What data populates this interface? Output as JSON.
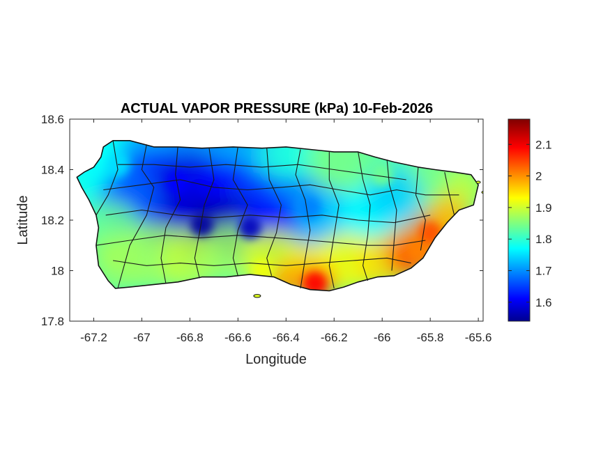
{
  "chart_data": {
    "type": "heatmap",
    "title": "ACTUAL VAPOR PRESSURE (kPa) 10-Feb-2026",
    "xlabel": "Longitude",
    "ylabel": "Latitude",
    "xlim": [
      -67.3,
      -65.58
    ],
    "ylim": [
      17.8,
      18.6
    ],
    "xticks": [
      -67.2,
      -67,
      -66.8,
      -66.6,
      -66.4,
      -66.2,
      -66,
      -65.8,
      -65.6
    ],
    "xtick_labels": [
      "-67.2",
      "-67",
      "-66.8",
      "-66.6",
      "-66.4",
      "-66.2",
      "-66",
      "-65.8",
      "-65.6"
    ],
    "yticks": [
      17.8,
      18,
      18.2,
      18.4,
      18.6
    ],
    "ytick_labels": [
      "17.8",
      "18",
      "18.2",
      "18.4",
      "18.6"
    ],
    "colorbar": {
      "colormap": "jet",
      "range": [
        1.54,
        2.18
      ],
      "ticks": [
        1.6,
        1.7,
        1.8,
        1.9,
        2,
        2.1
      ],
      "tick_labels": [
        "1.6",
        "1.7",
        "1.8",
        "1.9",
        "2",
        "2.1"
      ]
    },
    "grid": false,
    "region": "Puerto Rico",
    "field_pattern": "lowest values (~1.55-1.65 kPa, dark blue) along the central mountain ridge near -66.8 to -66.5 lon, 18.15-18.35 lat; moderate (~1.75-1.85) on the north coast; highest (~1.95-2.1, orange/red) on the southeast and south coasts",
    "samples": [
      {
        "lon": -66.75,
        "lat": 18.18,
        "value": 1.56
      },
      {
        "lon": -66.55,
        "lat": 18.17,
        "value": 1.58
      },
      {
        "lon": -66.85,
        "lat": 18.35,
        "value": 1.62
      },
      {
        "lon": -66.3,
        "lat": 18.25,
        "value": 1.7
      },
      {
        "lon": -67.1,
        "lat": 18.42,
        "value": 1.76
      },
      {
        "lon": -66.0,
        "lat": 18.38,
        "value": 1.85
      },
      {
        "lon": -67.1,
        "lat": 18.05,
        "value": 1.88
      },
      {
        "lon": -66.5,
        "lat": 18.0,
        "value": 1.93
      },
      {
        "lon": -65.85,
        "lat": 18.08,
        "value": 2.02
      },
      {
        "lon": -65.8,
        "lat": 18.15,
        "value": 2.05
      },
      {
        "lon": -66.28,
        "lat": 17.95,
        "value": 2.1
      }
    ]
  }
}
